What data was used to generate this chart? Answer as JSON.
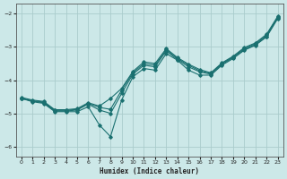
{
  "title": "",
  "xlabel": "Humidex (Indice chaleur)",
  "bg_color": "#cce8e8",
  "grid_color": "#aacccc",
  "line_color": "#1a7070",
  "xlim": [
    -0.5,
    23.5
  ],
  "ylim": [
    -6.3,
    -1.7
  ],
  "yticks": [
    -6,
    -5,
    -4,
    -3,
    -2
  ],
  "xticks": [
    0,
    1,
    2,
    3,
    4,
    5,
    6,
    7,
    8,
    9,
    10,
    11,
    12,
    13,
    14,
    15,
    16,
    17,
    18,
    19,
    20,
    21,
    22,
    23
  ],
  "lines": [
    {
      "x": [
        0,
        1,
        2,
        3,
        4,
        5,
        6,
        7,
        8,
        9,
        10,
        11,
        12,
        13,
        14,
        15,
        16,
        17,
        18,
        19,
        20,
        21,
        22,
        23
      ],
      "y": [
        -4.55,
        -4.65,
        -4.7,
        -4.95,
        -4.95,
        -4.95,
        -4.8,
        -5.35,
        -5.7,
        -4.6,
        -3.9,
        -3.65,
        -3.7,
        -3.2,
        -3.4,
        -3.7,
        -3.85,
        -3.85,
        -3.55,
        -3.35,
        -3.1,
        -2.95,
        -2.7,
        -2.15
      ]
    },
    {
      "x": [
        0,
        1,
        2,
        3,
        4,
        5,
        6,
        7,
        8,
        9,
        10,
        11,
        12,
        13,
        14,
        15,
        16,
        17,
        18,
        19,
        20,
        21,
        22,
        23
      ],
      "y": [
        -4.55,
        -4.63,
        -4.68,
        -4.93,
        -4.93,
        -4.9,
        -4.72,
        -4.9,
        -5.0,
        -4.4,
        -3.82,
        -3.55,
        -3.6,
        -3.12,
        -3.38,
        -3.6,
        -3.75,
        -3.82,
        -3.52,
        -3.32,
        -3.08,
        -2.93,
        -2.68,
        -2.12
      ]
    },
    {
      "x": [
        0,
        1,
        2,
        3,
        4,
        5,
        6,
        7,
        8,
        9,
        10,
        11,
        12,
        13,
        14,
        15,
        16,
        17,
        18,
        19,
        20,
        21,
        22,
        23
      ],
      "y": [
        -4.55,
        -4.62,
        -4.66,
        -4.91,
        -4.91,
        -4.88,
        -4.7,
        -4.82,
        -4.88,
        -4.3,
        -3.78,
        -3.5,
        -3.55,
        -3.08,
        -3.35,
        -3.55,
        -3.72,
        -3.8,
        -3.5,
        -3.3,
        -3.05,
        -2.9,
        -2.65,
        -2.1
      ]
    },
    {
      "x": [
        0,
        1,
        2,
        3,
        4,
        5,
        6,
        7,
        8,
        9,
        10,
        11,
        12,
        13,
        14,
        15,
        16,
        17,
        18,
        19,
        20,
        21,
        22,
        23
      ],
      "y": [
        -4.52,
        -4.6,
        -4.64,
        -4.89,
        -4.89,
        -4.86,
        -4.68,
        -4.78,
        -4.55,
        -4.25,
        -3.74,
        -3.45,
        -3.5,
        -3.05,
        -3.32,
        -3.52,
        -3.68,
        -3.78,
        -3.48,
        -3.28,
        -3.02,
        -2.88,
        -2.62,
        -2.08
      ]
    }
  ]
}
